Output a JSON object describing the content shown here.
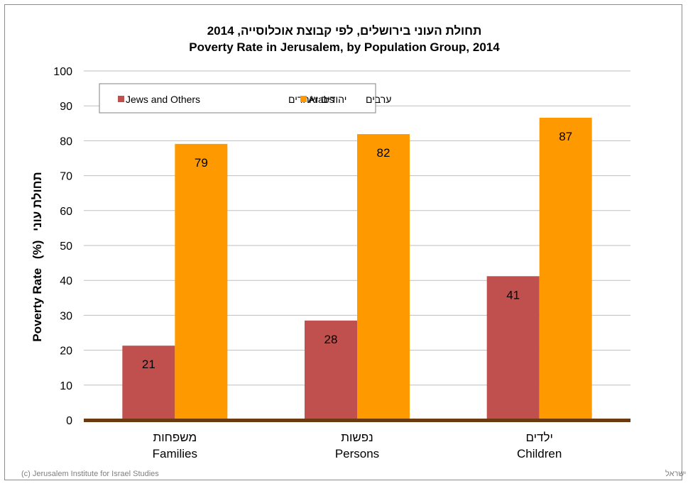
{
  "chart_data": {
    "type": "bar",
    "title": "תחולת העוני בירושלים, לפי קבוצת אוכלוסייה, 2014",
    "subtitle": "Poverty Rate in Jerusalem, by Population Group, 2014",
    "ylabel_en": "Poverty Rate",
    "ylabel_unit": "(%)",
    "ylabel_he": "תחולת עוני",
    "ylim": [
      0,
      100
    ],
    "yticks": [
      0,
      10,
      20,
      30,
      40,
      50,
      60,
      70,
      80,
      90,
      100
    ],
    "grid": true,
    "legend_position": "top-left",
    "categories": [
      {
        "he": "משפחות",
        "en": "Families"
      },
      {
        "he": "נפשות",
        "en": "Persons"
      },
      {
        "he": "ילדים",
        "en": "Children"
      }
    ],
    "series": [
      {
        "name_en": "Jews and Others",
        "name_he": "יהודים ואחרים",
        "color": "#c0504d",
        "values": [
          21.3,
          28.5,
          41.2
        ],
        "labels": [
          "21",
          "28",
          "41"
        ]
      },
      {
        "name_en": "Arabs",
        "name_he": "ערבים",
        "color": "#ff9900",
        "values": [
          79.1,
          81.9,
          86.6
        ],
        "labels": [
          "79",
          "82",
          "87"
        ]
      }
    ]
  },
  "footer": {
    "left": "(c) Jerusalem Institute for Israel Studies",
    "right": "(c) מכון ירושלים לחקר ישראל"
  },
  "colors": {
    "baseline": "#6b3a10",
    "grid": "#bfbfbf"
  }
}
